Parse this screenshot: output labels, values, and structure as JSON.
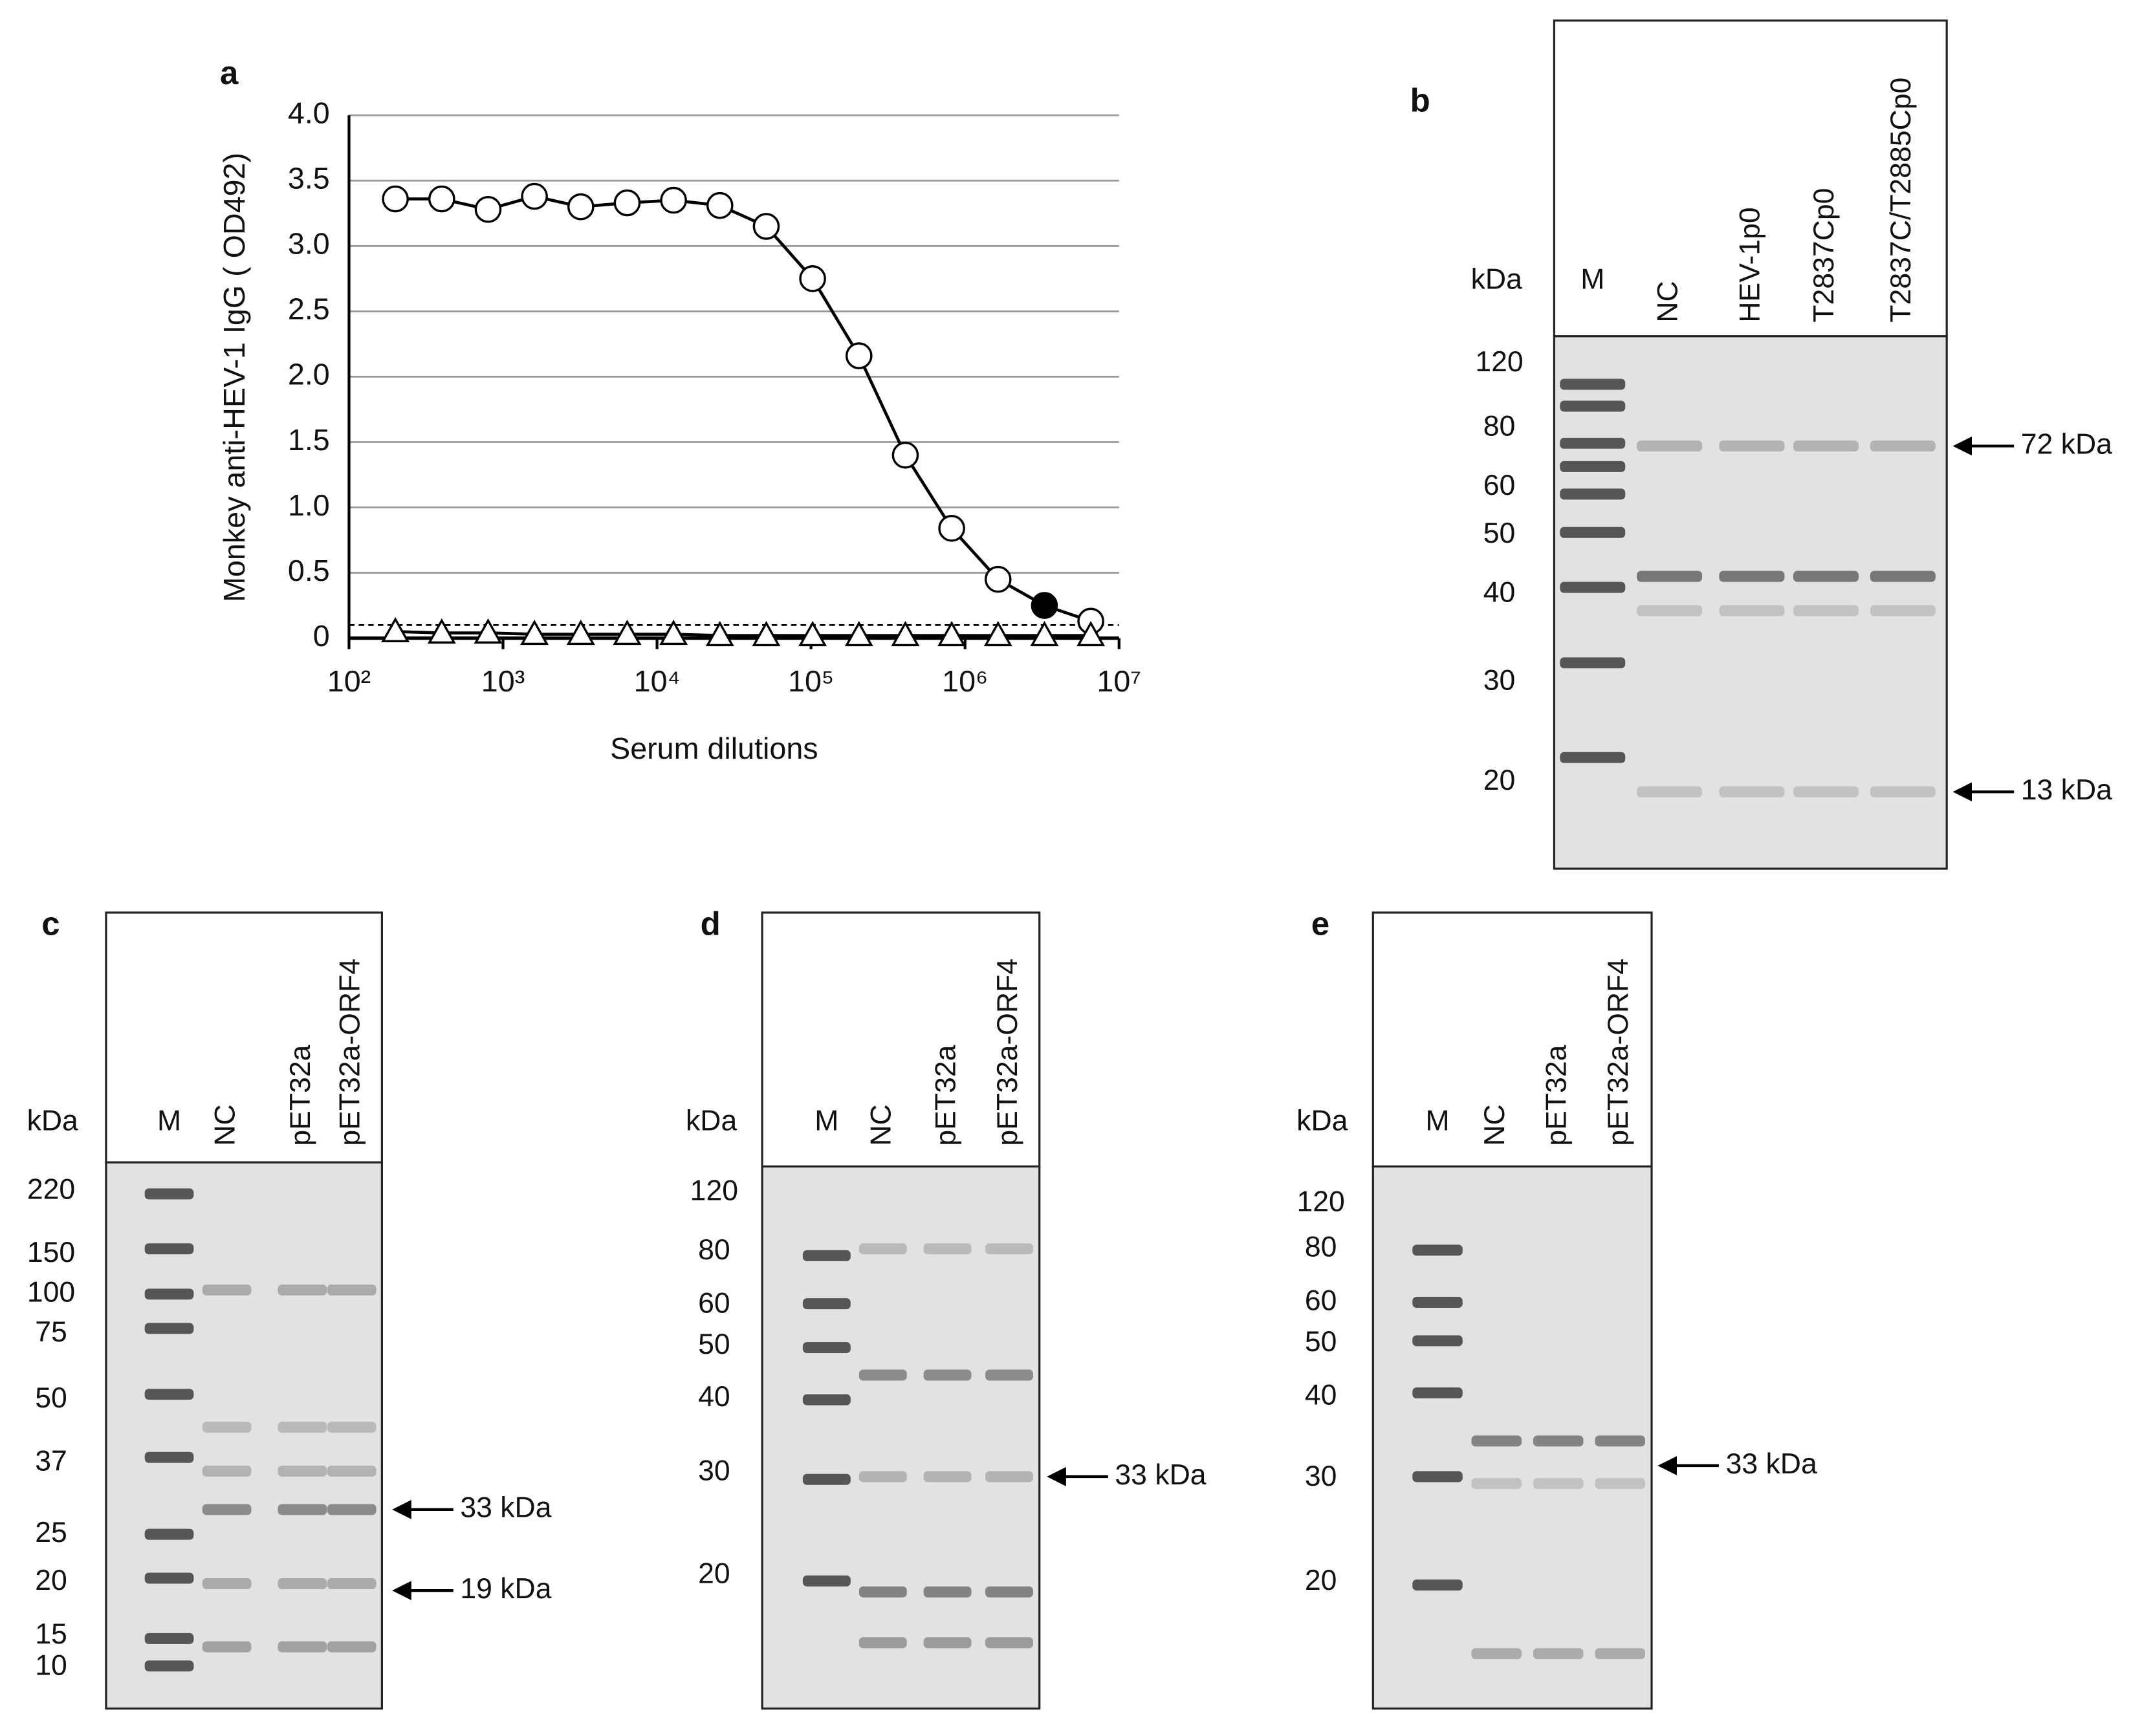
{
  "chart_data": {
    "type": "line",
    "label": "a",
    "ylabel": "Monkey anti-HEV-1 IgG ( OD492)",
    "xlabel": "Serum dilutions",
    "xscale": "log",
    "xlim": [
      100,
      10000000
    ],
    "xticks": [
      {
        "value": 100,
        "label": "10²"
      },
      {
        "value": 1000,
        "label": "10³"
      },
      {
        "value": 10000,
        "label": "10⁴"
      },
      {
        "value": 100000,
        "label": "10⁵"
      },
      {
        "value": 1000000,
        "label": "10⁶"
      },
      {
        "value": 10000000,
        "label": "10⁷"
      }
    ],
    "ylim": [
      0,
      4
    ],
    "yticks": [
      0,
      0.5,
      {
        "value": 1,
        "label": "1.0"
      },
      1.5,
      {
        "value": 2,
        "label": "2.0"
      },
      2.5,
      {
        "value": 3,
        "label": "3.0"
      },
      3.5,
      {
        "value": 4,
        "label": "4.0"
      }
    ],
    "grid": true,
    "cutoff": 0.1,
    "x": [
      200,
      400,
      800,
      1600,
      3200,
      6400,
      12800,
      25600,
      51200,
      102400,
      204800,
      409600,
      819200,
      1638400,
      3276800,
      6553600
    ],
    "series": [
      {
        "marker": "circle",
        "color": "#000000",
        "point_colors": [
          "#ffffff",
          "#ffffff",
          "#ffffff",
          "#ffffff",
          "#ffffff",
          "#ffffff",
          "#ffffff",
          "#ffffff",
          "#ffffff",
          "#ffffff",
          "#ffffff",
          "#ffffff",
          "#ffffff",
          "#ffffff",
          "#000000",
          "#ffffff"
        ],
        "values": [
          3.36,
          3.36,
          3.28,
          3.38,
          3.3,
          3.33,
          3.35,
          3.31,
          3.15,
          2.75,
          2.16,
          1.4,
          0.84,
          0.45,
          0.25,
          0.13
        ]
      },
      {
        "marker": "triangle",
        "color": "#000000",
        "values": [
          0.05,
          0.04,
          0.04,
          0.03,
          0.03,
          0.03,
          0.03,
          0.02,
          0.02,
          0.02,
          0.02,
          0.02,
          0.02,
          0.02,
          0.02,
          0.02
        ]
      }
    ]
  },
  "gels": [
    {
      "label": "b",
      "unit": "kDa",
      "lanes": [
        "M",
        "NC",
        "HEV-1p0",
        "T2837Cp0",
        "T2837C/T2885Cp0"
      ],
      "markers": [
        "120",
        "80",
        "60",
        "50",
        "40",
        "30",
        "20"
      ],
      "arrows": [
        "72 kDa",
        "13 kDa"
      ]
    },
    {
      "label": "c",
      "unit": "kDa",
      "lanes": [
        "M",
        "NC",
        "pET32a",
        "pET32a-ORF4"
      ],
      "markers": [
        "220",
        "150",
        "100",
        "75",
        "50",
        "37",
        "25",
        "20",
        "15",
        "10"
      ],
      "arrows": [
        "33 kDa",
        "19 kDa"
      ]
    },
    {
      "label": "d",
      "unit": "kDa",
      "lanes": [
        "M",
        "NC",
        "pET32a",
        "pET32a-ORF4"
      ],
      "markers": [
        "120",
        "80",
        "60",
        "50",
        "40",
        "30",
        "20"
      ],
      "arrows": [
        "33 kDa"
      ]
    },
    {
      "label": "e",
      "unit": "kDa",
      "lanes": [
        "M",
        "NC",
        "pET32a",
        "pET32a-ORF4"
      ],
      "markers": [
        "120",
        "80",
        "60",
        "50",
        "40",
        "30",
        "20"
      ],
      "arrows": [
        "33 kDa"
      ]
    }
  ]
}
